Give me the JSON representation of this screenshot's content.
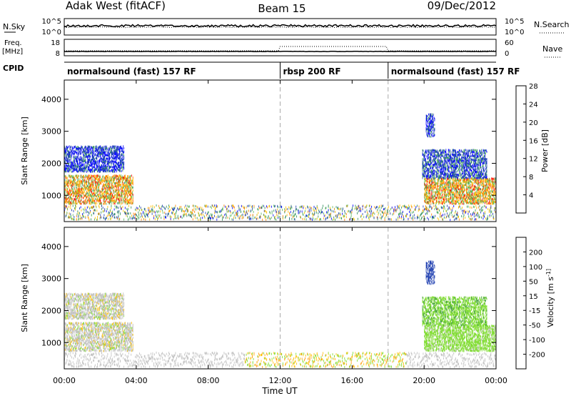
{
  "header": {
    "station": "Adak West (fitACF)",
    "beam": "Beam 15",
    "date": "09/Dec/2012"
  },
  "top_panels": {
    "nsky_label": "N.Sky",
    "nsky_top": "10^5",
    "nsky_bottom": "10^0",
    "nsearch_label": "N.Search",
    "nsearch_top": "10^5",
    "nsearch_bottom": "10^0",
    "freq_label_1": "Freq.",
    "freq_label_2": "[MHz]",
    "freq_top": "18",
    "freq_bottom": "8",
    "nave_label": "Nave",
    "nave_top": "60",
    "nave_bottom": "0",
    "cpid_label": "CPID"
  },
  "cpid_segments": [
    {
      "label": "normalsound (fast) 157 RF",
      "start_hr": 0,
      "end_hr": 12
    },
    {
      "label": "rbsp 200 RF",
      "start_hr": 12,
      "end_hr": 18
    },
    {
      "label": "normalsound (fast) 157 RF",
      "start_hr": 18,
      "end_hr": 24
    }
  ],
  "x_axis": {
    "title": "Time UT",
    "ticks": [
      "00:00",
      "04:00",
      "08:00",
      "12:00",
      "16:00",
      "20:00",
      "00:00"
    ],
    "range_hr": [
      0,
      24
    ]
  },
  "power_panel": {
    "ylabel": "Slant Range [km]",
    "yticks": [
      "1000",
      "2000",
      "3000",
      "4000"
    ],
    "colorbar_title": "Power [dB]",
    "colorbar_labels": [
      "4",
      "8",
      "12",
      "16",
      "20",
      "24",
      "28"
    ],
    "colors": [
      "#0000ff",
      "#1f3fb0",
      "#2f8f5a",
      "#5cb85c",
      "#ffc000",
      "#ff8000",
      "#ff0000"
    ]
  },
  "velocity_panel": {
    "ylabel": "Slant Range [km]",
    "yticks": [
      "1000",
      "2000",
      "3000",
      "4000"
    ],
    "colorbar_title": "Velocity [m s^-1]",
    "colorbar_labels": [
      "-200",
      "-100",
      "-50",
      "-15",
      "15",
      "50",
      "100",
      "200"
    ],
    "colors": [
      "#ff0000",
      "#ff6000",
      "#ff9900",
      "#ffc000",
      "#c0c0c0",
      "#7fdc2f",
      "#3a9a3a",
      "#1f3fb0",
      "#2020d0"
    ]
  },
  "chart_data": {
    "type": "heatmap",
    "title": "Adak West (fitACF)  Beam 15  09/Dec/2012",
    "xlabel": "Time UT",
    "ylabel": "Slant Range [km]",
    "x_range_hr": [
      0,
      24
    ],
    "y_range_km": [
      180,
      4600
    ],
    "power_scale_db": [
      0,
      30
    ],
    "velocity_scale_ms": [
      -250,
      250
    ],
    "mode_change_times_hr": [
      12,
      18
    ],
    "scatter_regions": [
      {
        "t_start_hr": 0.0,
        "t_end_hr": 3.8,
        "range_km": [
          700,
          1600
        ],
        "power_db": 28,
        "velocity_ms": 0
      },
      {
        "t_start_hr": 0.0,
        "t_end_hr": 3.3,
        "range_km": [
          1700,
          2500
        ],
        "power_db": 12,
        "velocity_ms": 0
      },
      {
        "t_start_hr": 20.0,
        "t_end_hr": 24.0,
        "range_km": [
          700,
          1500
        ],
        "power_db": 28,
        "velocity_ms": 30
      },
      {
        "t_start_hr": 19.9,
        "t_end_hr": 23.5,
        "range_km": [
          1500,
          2400
        ],
        "power_db": 14,
        "velocity_ms": 40
      },
      {
        "t_start_hr": 20.1,
        "t_end_hr": 20.6,
        "range_km": [
          2800,
          3500
        ],
        "power_db": 12,
        "velocity_ms": 180
      }
    ]
  }
}
